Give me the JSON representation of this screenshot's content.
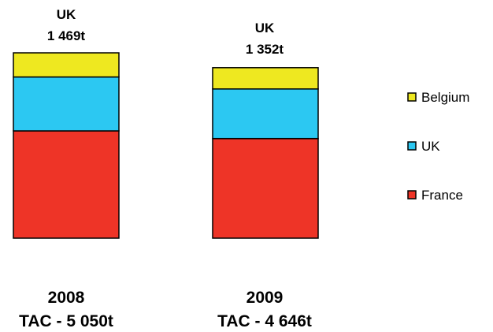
{
  "chart_data": {
    "type": "bar",
    "stacked": true,
    "categories": [
      "2008",
      "2009"
    ],
    "category_labels": [
      {
        "year": "2008",
        "tac": "TAC - 5 050t"
      },
      {
        "year": "2009",
        "tac": "TAC - 4 646t"
      }
    ],
    "top_annotations": [
      {
        "name": "UK",
        "value": "1 469t"
      },
      {
        "name": "UK",
        "value": "1 352t"
      }
    ],
    "series": [
      {
        "name": "France",
        "color": "#ee3427",
        "values": [
          2924,
          2713
        ]
      },
      {
        "name": "UK",
        "color": "#2cc8f2",
        "values": [
          1469,
          1352
        ]
      },
      {
        "name": "Belgium",
        "color": "#eee820",
        "values": [
          657,
          581
        ]
      }
    ],
    "totals": [
      5050,
      4646
    ],
    "legend": [
      "Belgium",
      "UK",
      "France"
    ],
    "legend_position": "right",
    "grid": false,
    "title": "",
    "xlabel": "",
    "ylabel": ""
  }
}
